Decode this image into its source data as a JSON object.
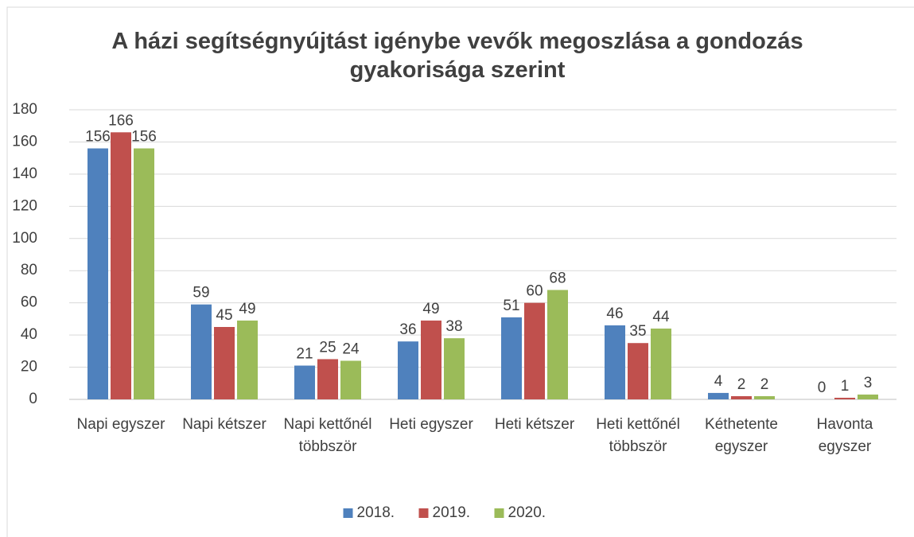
{
  "chart_data": {
    "type": "bar",
    "title": "A házi segítségnyújtást igénybe vevők megoszlása a gondozás gyakorisága szerint",
    "categories": [
      "Napi egyszer",
      "Napi kétszer",
      "Napi kettőnél többször",
      "Heti egyszer",
      "Heti kétszer",
      "Heti kettőnél többször",
      "Kéthetente egyszer",
      "Havonta egyszer"
    ],
    "series": [
      {
        "name": "2018.",
        "color": "#4f81bd",
        "values": [
          156,
          59,
          21,
          36,
          51,
          46,
          4,
          0
        ]
      },
      {
        "name": "2019.",
        "color": "#c0504d",
        "values": [
          166,
          45,
          25,
          49,
          60,
          35,
          2,
          1
        ]
      },
      {
        "name": "2020.",
        "color": "#9bbb59",
        "values": [
          156,
          49,
          24,
          38,
          68,
          44,
          2,
          3
        ]
      }
    ],
    "ylim": [
      0,
      180
    ],
    "yticks": [
      0,
      20,
      40,
      60,
      80,
      100,
      120,
      140,
      160,
      180
    ],
    "grid": true,
    "legend": "bottom"
  }
}
